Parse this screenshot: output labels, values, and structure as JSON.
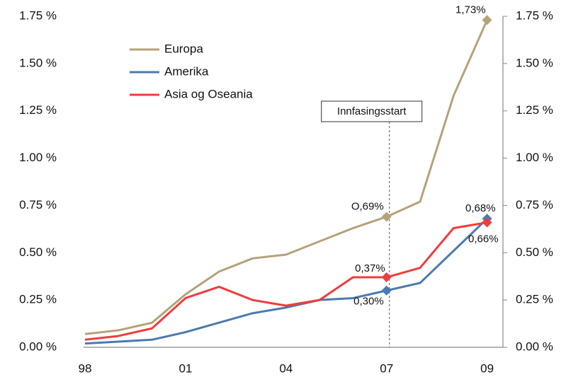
{
  "chart_data": {
    "type": "line",
    "categories": [
      "98",
      null,
      null,
      "01",
      null,
      null,
      "04",
      null,
      null,
      "07",
      null,
      null,
      "09"
    ],
    "series": [
      {
        "name": "Europa",
        "color": "#b5a27a",
        "values": [
          0.07,
          0.09,
          0.13,
          0.28,
          0.4,
          0.47,
          0.49,
          0.56,
          0.63,
          0.69,
          0.77,
          1.33,
          1.73
        ],
        "value_labels": [
          null,
          null,
          null,
          null,
          null,
          null,
          null,
          null,
          null,
          "O,69%",
          null,
          null,
          "1,73%"
        ]
      },
      {
        "name": "Amerika",
        "color": "#4a7ab0",
        "values": [
          0.02,
          0.03,
          0.04,
          0.08,
          0.13,
          0.18,
          0.21,
          0.25,
          0.26,
          0.3,
          0.34,
          0.51,
          0.68
        ],
        "value_labels": [
          null,
          null,
          null,
          null,
          null,
          null,
          null,
          null,
          null,
          "0,30%",
          null,
          null,
          "0,68%"
        ]
      },
      {
        "name": "Asia og Oseania",
        "color": "#f03c3c",
        "values": [
          0.04,
          0.06,
          0.1,
          0.26,
          0.32,
          0.25,
          0.22,
          0.25,
          0.37,
          0.37,
          0.42,
          0.63,
          0.66
        ],
        "value_labels": [
          null,
          null,
          null,
          null,
          null,
          null,
          null,
          null,
          null,
          "0,37%",
          null,
          null,
          "0,66%"
        ]
      }
    ],
    "annotation": {
      "text": "Innfasingsstart",
      "category_index": 9
    },
    "ylim": [
      0,
      1.75
    ],
    "yticks": [
      {
        "value": 0,
        "label": "0.00 %"
      },
      {
        "value": 0.25,
        "label": "0.25 %"
      },
      {
        "value": 0.5,
        "label": "0.50 %"
      },
      {
        "value": 0.75,
        "label": "0.75 %"
      },
      {
        "value": 1,
        "label": "1.00 %"
      },
      {
        "value": 1.25,
        "label": "1.25 %"
      },
      {
        "value": 1.5,
        "label": "1.50 %"
      },
      {
        "value": 1.75,
        "label": "1.75 %"
      }
    ],
    "y2lim": [
      0,
      1.75
    ],
    "y2ticks": [
      {
        "value": 0,
        "label": "0.00 %"
      },
      {
        "value": 0.25,
        "label": "0.25 %"
      },
      {
        "value": 0.5,
        "label": "0.50 %"
      },
      {
        "value": 0.75,
        "label": "0.75 %"
      },
      {
        "value": 1,
        "label": "1.00 %"
      },
      {
        "value": 1.25,
        "label": "1.25 %"
      },
      {
        "value": 1.5,
        "label": "1.50 %"
      },
      {
        "value": 1.75,
        "label": "1.75 %"
      }
    ],
    "legend": "upper left"
  }
}
